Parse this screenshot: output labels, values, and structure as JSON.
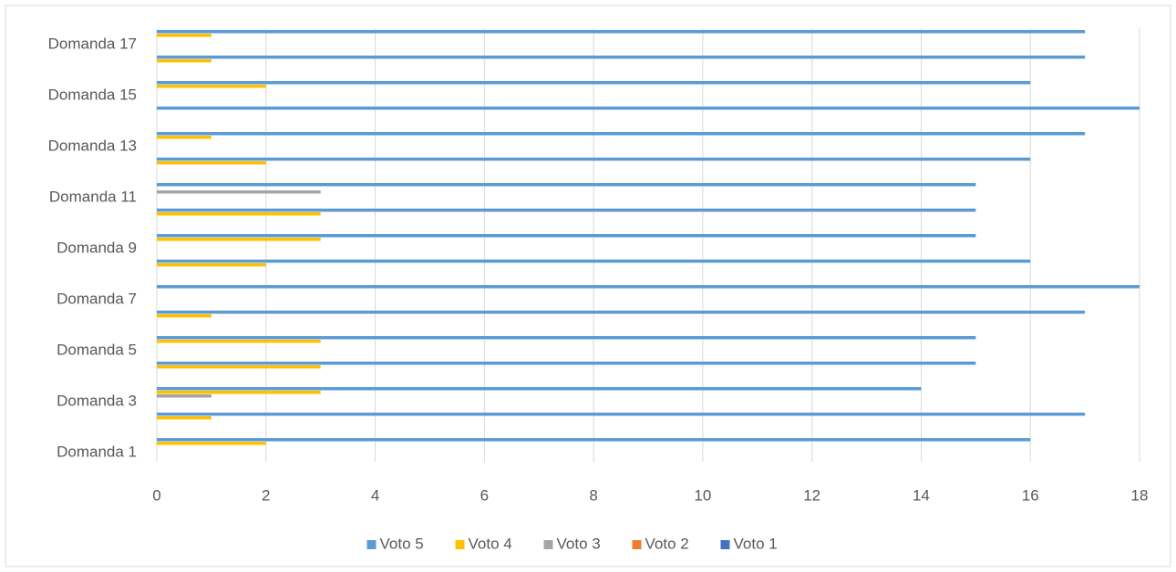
{
  "chart_data": {
    "type": "bar",
    "orientation": "horizontal",
    "categories": [
      "Domanda 1",
      null,
      "Domanda 3",
      null,
      "Domanda 5",
      null,
      "Domanda 7",
      null,
      "Domanda 9",
      null,
      "Domanda 11",
      null,
      "Domanda 13",
      null,
      "Domanda 15",
      null,
      "Domanda 17"
    ],
    "series": [
      {
        "name": "Voto 5",
        "color": "#5b9bd5",
        "values": [
          16,
          17,
          14,
          15,
          15,
          17,
          18,
          16,
          15,
          15,
          15,
          16,
          17,
          18,
          16,
          17,
          17
        ]
      },
      {
        "name": "Voto 4",
        "color": "#ffc000",
        "values": [
          2,
          1,
          3,
          3,
          3,
          1,
          0,
          2,
          3,
          3,
          0,
          2,
          1,
          0,
          2,
          1,
          1
        ]
      },
      {
        "name": "Voto 3",
        "color": "#a5a5a5",
        "values": [
          0,
          0,
          1,
          0,
          0,
          0,
          0,
          0,
          0,
          0,
          3,
          0,
          0,
          0,
          0,
          0,
          0
        ]
      },
      {
        "name": "Voto 2",
        "color": "#ed7d31",
        "values": [
          0,
          0,
          0,
          0,
          0,
          0,
          0,
          0,
          0,
          0,
          0,
          0,
          0,
          0,
          0,
          0,
          0
        ]
      },
      {
        "name": "Voto 1",
        "color": "#4472c4",
        "values": [
          0,
          0,
          0,
          0,
          0,
          0,
          0,
          0,
          0,
          0,
          0,
          0,
          0,
          0,
          0,
          0,
          0
        ]
      }
    ],
    "xlim": [
      0,
      18
    ],
    "xticks": [
      0,
      2,
      4,
      6,
      8,
      10,
      12,
      14,
      16,
      18
    ],
    "grid": true,
    "legend": "bottom"
  }
}
